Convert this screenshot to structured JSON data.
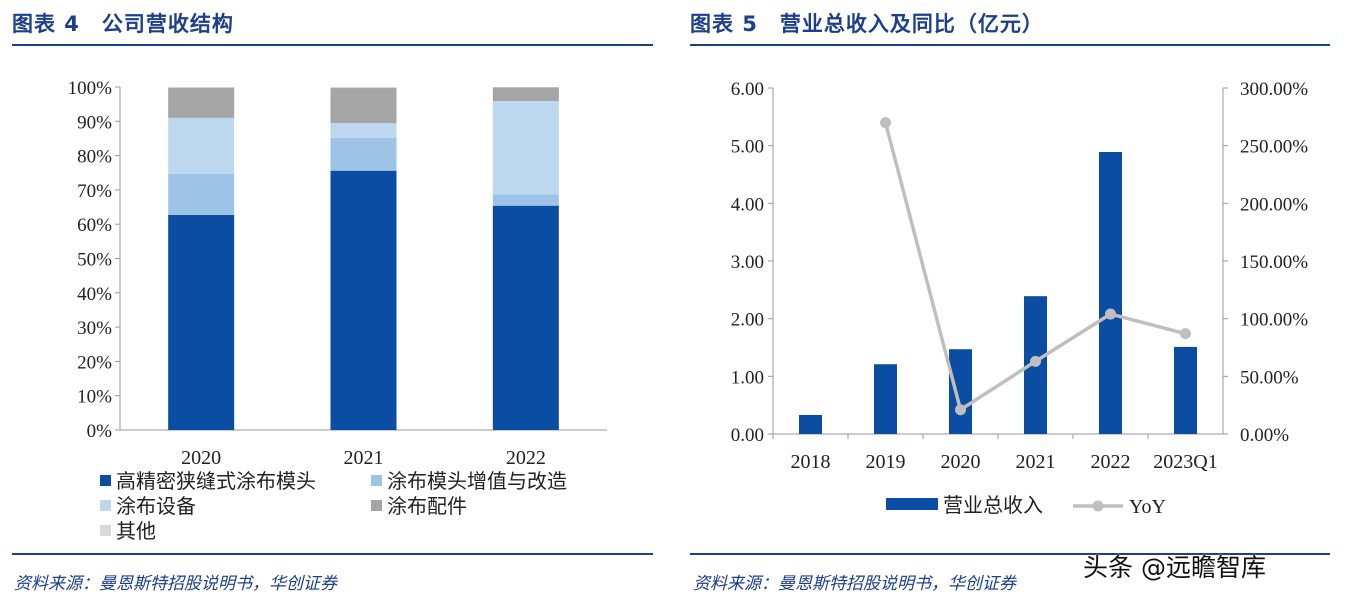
{
  "left_panel": {
    "title": "图表 4　公司营收结构",
    "source": "资料来源：曼恩斯特招股说明书，华创证券"
  },
  "right_panel": {
    "title": "图表 5　营业总收入及同比（亿元）",
    "source": "资料来源：曼恩斯特招股说明书，华创证券"
  },
  "watermark": "头条 @远瞻智库",
  "colors": {
    "dark_blue": "#0b4da2",
    "mid_blue": "#9dc3e6",
    "light_blue": "#bdd7ee",
    "dark_gray": "#a5a5a5",
    "light_gray": "#d9d9d9",
    "yoy_line": "#bfbfbf",
    "rule": "#1c3f8c"
  },
  "chart_data": [
    {
      "type": "bar",
      "stacked": true,
      "title": "公司营收结构",
      "categories": [
        "2020",
        "2021",
        "2022"
      ],
      "ylim": [
        0,
        100
      ],
      "yticks": [
        "0%",
        "10%",
        "20%",
        "30%",
        "40%",
        "50%",
        "60%",
        "70%",
        "80%",
        "90%",
        "100%"
      ],
      "series": [
        {
          "name": "高精密狭缝式涂布模头",
          "values": [
            62.7,
            75.6,
            65.4
          ]
        },
        {
          "name": "涂布模头增值与改造",
          "values": [
            12.0,
            9.6,
            3.3
          ]
        },
        {
          "name": "涂布设备",
          "values": [
            16.3,
            4.3,
            27.2
          ]
        },
        {
          "name": "涂布配件",
          "values": [
            8.8,
            10.2,
            4.0
          ]
        },
        {
          "name": "其他",
          "values": [
            0.2,
            0.3,
            0.1
          ]
        }
      ],
      "legend": "bottom"
    },
    {
      "type": "bar+line",
      "title": "营业总收入及同比（亿元）",
      "categories": [
        "2018",
        "2019",
        "2020",
        "2021",
        "2022",
        "2023Q1"
      ],
      "bar_series": {
        "name": "营业总收入",
        "values": [
          0.33,
          1.21,
          1.47,
          2.39,
          4.89,
          1.51
        ],
        "axis": "left"
      },
      "line_series": {
        "name": "YoY",
        "values": [
          null,
          270.0,
          21.0,
          63.0,
          104.0,
          87.0
        ],
        "axis": "right"
      },
      "ylim_left": [
        0,
        6
      ],
      "ylim_right": [
        0,
        300
      ],
      "yticks_left": [
        "0.00",
        "1.00",
        "2.00",
        "3.00",
        "4.00",
        "5.00",
        "6.00"
      ],
      "yticks_right": [
        "0.00%",
        "50.00%",
        "100.00%",
        "150.00%",
        "200.00%",
        "250.00%",
        "300.00%"
      ],
      "legend": "bottom"
    }
  ]
}
